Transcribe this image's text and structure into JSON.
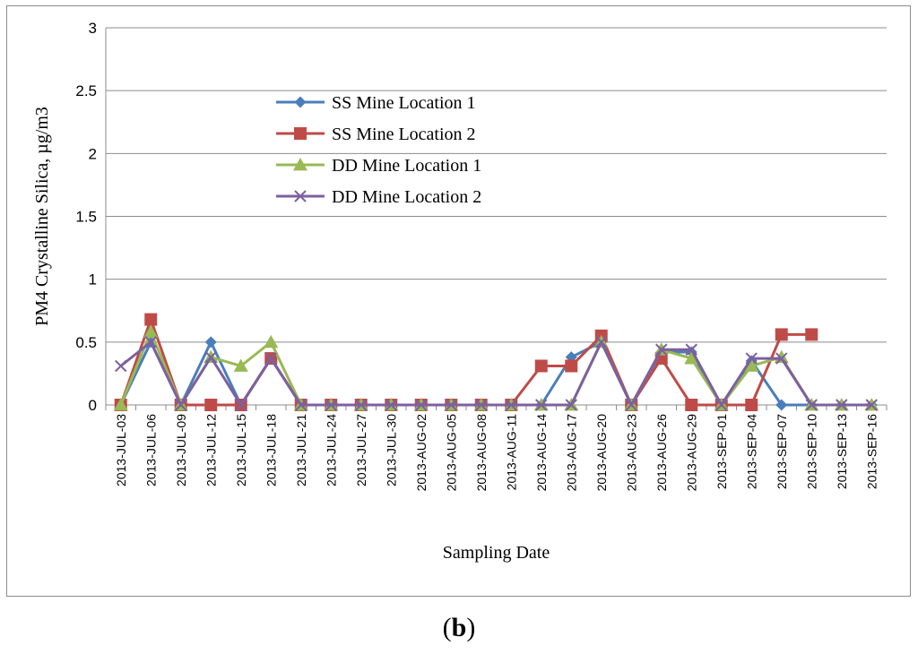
{
  "caption": {
    "open": "(",
    "letter": "b",
    "close": ")"
  },
  "chart_data": {
    "type": "line",
    "title": "",
    "xlabel": "Sampling Date",
    "ylabel": "PM4 Crystalline Silica, µg/m3",
    "ylim": [
      0,
      3
    ],
    "yticks": [
      "0",
      "0.5",
      "1",
      "1.5",
      "2",
      "2.5",
      "3"
    ],
    "grid": true,
    "legend_position": "upper-left-center",
    "categories": [
      "2013-JUL-03",
      "2013-JUL-06",
      "2013-JUL-09",
      "2013-JUL-12",
      "2013-JUL-15",
      "2013-JUL-18",
      "2013-JUL-21",
      "2013-JUL-24",
      "2013-JUL-27",
      "2013-JUL-30",
      "2013-AUG-02",
      "2013-AUG-05",
      "2013-AUG-08",
      "2013-AUG-11",
      "2013-AUG-14",
      "2013-AUG-17",
      "2013-AUG-20",
      "2013-AUG-23",
      "2013-AUG-26",
      "2013-AUG-29",
      "2013-SEP-01",
      "2013-SEP-04",
      "2013-SEP-07",
      "2013-SEP-10",
      "2013-SEP-13",
      "2013-SEP-16"
    ],
    "series": [
      {
        "name": "SS Mine  Location 1",
        "color": "#4a7ebb",
        "marker": "diamond",
        "values": [
          0,
          0.5,
          0,
          0.5,
          0,
          0.37,
          0,
          0,
          0,
          0,
          0,
          0,
          0,
          0,
          0,
          0.38,
          0.5,
          0,
          0.42,
          0.42,
          0,
          0.35,
          0,
          0,
          0,
          0
        ]
      },
      {
        "name": "SS Mine Location 2",
        "color": "#be4b48",
        "marker": "square",
        "values": [
          0,
          0.68,
          0,
          0,
          0,
          0.37,
          0,
          0,
          0,
          0,
          0,
          0,
          0,
          0,
          0.31,
          0.31,
          0.55,
          0,
          0.37,
          0,
          0,
          0,
          0.56,
          0.56,
          null,
          null
        ]
      },
      {
        "name": "DD Mine Location 1",
        "color": "#98b954",
        "marker": "triangle",
        "values": [
          0,
          0.58,
          0,
          0.38,
          0.31,
          0.5,
          0,
          0,
          0,
          0,
          0,
          0,
          0,
          0,
          0,
          0,
          0.5,
          0,
          0.44,
          0.37,
          0,
          0.31,
          0.38,
          0,
          0,
          0
        ]
      },
      {
        "name": "DD Mine Location 2",
        "color": "#7d60a0",
        "marker": "x",
        "values": [
          0.31,
          0.5,
          0,
          0.38,
          0,
          0.37,
          0,
          0,
          0,
          0,
          0,
          0,
          0,
          0,
          0,
          0,
          0.5,
          0,
          0.44,
          0.44,
          0,
          0.37,
          0.37,
          0,
          0,
          0
        ]
      }
    ]
  }
}
